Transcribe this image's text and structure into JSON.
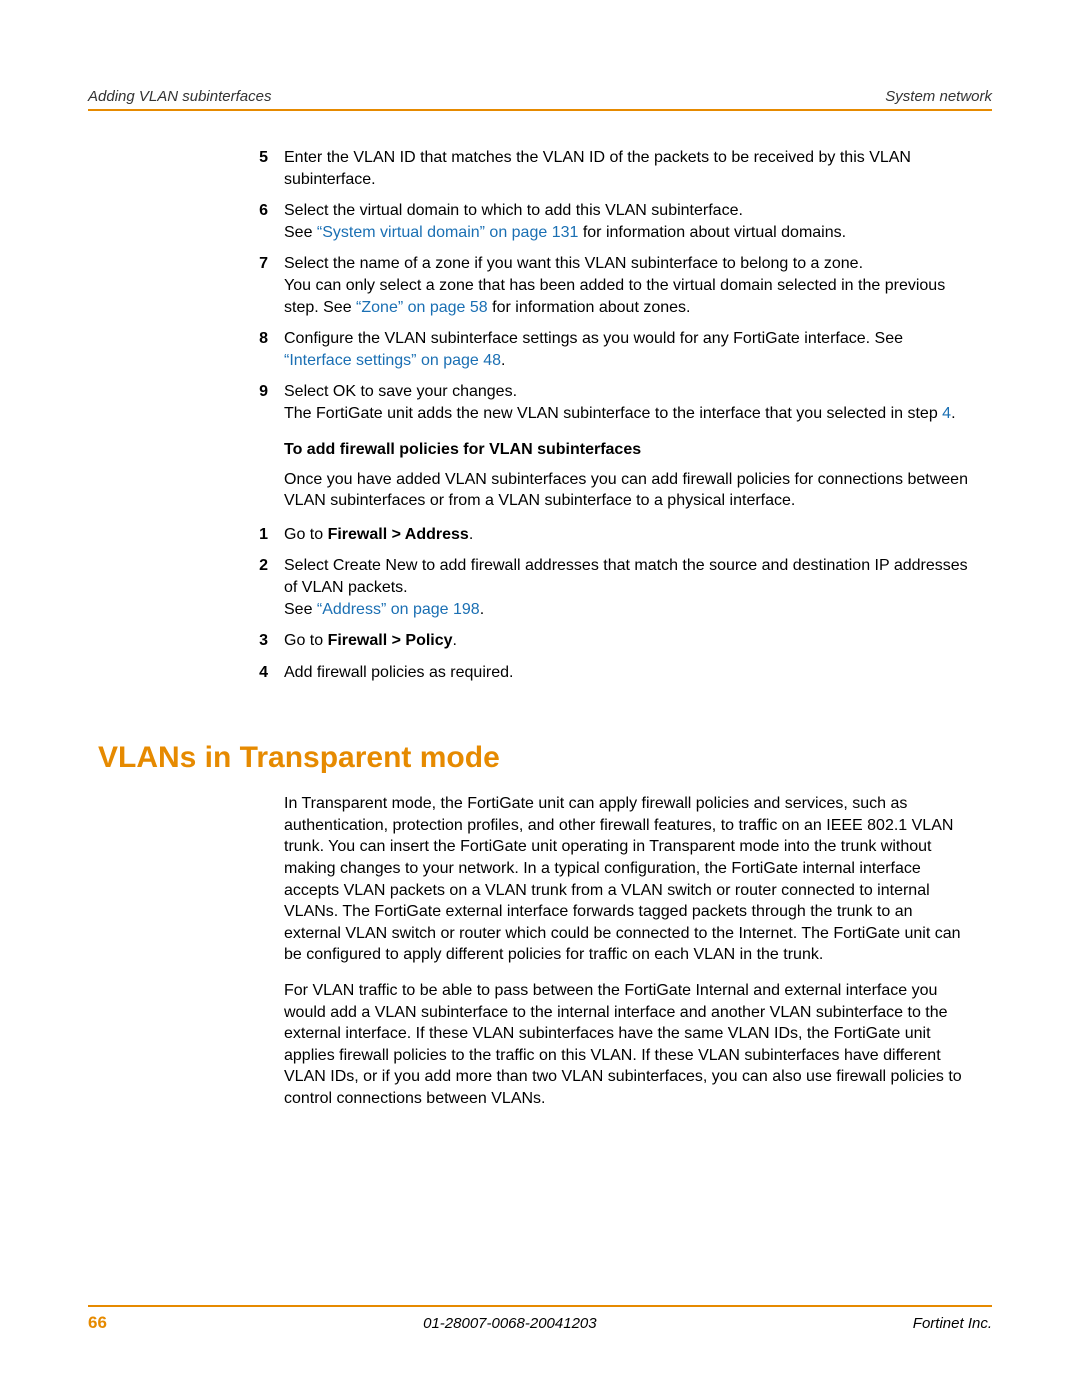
{
  "header": {
    "left": "Adding VLAN subinterfaces",
    "right": "System network"
  },
  "colors": {
    "accent": "#e68a00",
    "link": "#1a6fb3",
    "text": "#000000",
    "background": "#ffffff"
  },
  "steps_a": [
    {
      "num": "5",
      "runs": [
        {
          "t": "Enter the VLAN ID that matches the VLAN ID of the packets to be received by this VLAN subinterface."
        }
      ]
    },
    {
      "num": "6",
      "runs": [
        {
          "t": "Select the virtual domain to which to add this VLAN subinterface."
        },
        {
          "br": true
        },
        {
          "t": "See "
        },
        {
          "t": "“System virtual domain” on page 131",
          "link": true
        },
        {
          "t": " for information about virtual domains."
        }
      ]
    },
    {
      "num": "7",
      "runs": [
        {
          "t": "Select the name of a zone if you want this VLAN subinterface to belong to a zone."
        },
        {
          "br": true
        },
        {
          "t": "You can only select a zone that has been added to the virtual domain selected in the previous step. See "
        },
        {
          "t": "“Zone” on page 58",
          "link": true
        },
        {
          "t": " for information about zones."
        }
      ]
    },
    {
      "num": "8",
      "runs": [
        {
          "t": "Configure the VLAN subinterface settings as you would for any FortiGate interface. See "
        },
        {
          "t": "“Interface settings” on page 48",
          "link": true
        },
        {
          "t": "."
        }
      ]
    },
    {
      "num": "9",
      "runs": [
        {
          "t": "Select OK to save your changes."
        },
        {
          "br": true
        },
        {
          "t": "The FortiGate unit adds the new VLAN subinterface to the interface that you selected in step "
        },
        {
          "t": "4",
          "link": true
        },
        {
          "t": "."
        }
      ]
    }
  ],
  "subhead_a": "To add firewall policies for VLAN subinterfaces",
  "para_a": "Once you have added VLAN subinterfaces you can add firewall policies for connections between VLAN subinterfaces or from a VLAN subinterface to a physical interface.",
  "steps_b": [
    {
      "num": "1",
      "runs": [
        {
          "t": "Go to "
        },
        {
          "t": "Firewall > Address",
          "bold": true
        },
        {
          "t": "."
        }
      ]
    },
    {
      "num": "2",
      "runs": [
        {
          "t": "Select Create New to add firewall addresses that match the source and destination IP addresses of VLAN packets."
        },
        {
          "br": true
        },
        {
          "t": "See "
        },
        {
          "t": "“Address” on page 198",
          "link": true
        },
        {
          "t": "."
        }
      ]
    },
    {
      "num": "3",
      "runs": [
        {
          "t": "Go to "
        },
        {
          "t": "Firewall > Policy",
          "bold": true
        },
        {
          "t": "."
        }
      ]
    },
    {
      "num": "4",
      "runs": [
        {
          "t": "Add firewall policies as required."
        }
      ]
    }
  ],
  "section_title": "VLANs in Transparent mode",
  "body_paras": [
    "In Transparent mode, the FortiGate unit can apply firewall policies and services, such as authentication, protection profiles, and other firewall features, to traffic on an IEEE 802.1 VLAN trunk. You can insert the FortiGate unit operating in Transparent mode into the trunk without making changes to your network. In a typical configuration, the FortiGate internal interface accepts VLAN packets on a VLAN trunk from a VLAN switch or router connected to internal VLANs. The FortiGate external interface forwards tagged packets through the trunk to an external VLAN switch or router which could be connected to the Internet. The FortiGate unit can be configured to apply different policies for traffic on each VLAN in the trunk.",
    "For VLAN traffic to be able to pass between the FortiGate Internal and external interface you would add a VLAN subinterface to the internal interface and another VLAN subinterface to the external interface. If these VLAN subinterfaces have the same VLAN IDs, the FortiGate unit applies firewall policies to the traffic on this VLAN. If these VLAN subinterfaces have different VLAN IDs, or if you add more than two VLAN subinterfaces, you can also use firewall policies to control connections between VLANs."
  ],
  "footer": {
    "page": "66",
    "docid": "01-28007-0068-20041203",
    "company": "Fortinet Inc."
  }
}
